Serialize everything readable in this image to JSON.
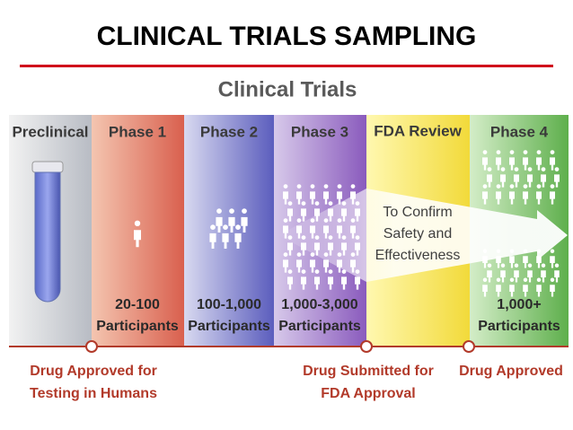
{
  "header": {
    "title": "CLINICAL TRIALS SAMPLING"
  },
  "diagram": {
    "title": "Clinical Trials",
    "columns": [
      {
        "label": "Preclinical"
      },
      {
        "label": "Phase 1",
        "count": "20-100",
        "unit": "Participants"
      },
      {
        "label": "Phase 2",
        "count": "100-1,000",
        "unit": "Participants"
      },
      {
        "label": "Phase 3",
        "count": "1,000-3,000",
        "unit": "Participants"
      },
      {
        "label": "FDA Review"
      },
      {
        "label": "Phase 4",
        "count": "1,000+",
        "unit": "Participants"
      }
    ],
    "arrow_text": [
      "To Confirm",
      "Safety and",
      "Effectiveness"
    ],
    "milestones": [
      {
        "lines": [
          "Drug Approved for",
          "Testing in Humans"
        ]
      },
      {
        "lines": [
          "Drug Submitted for",
          "FDA Approval"
        ]
      },
      {
        "lines": [
          "Drug Approved"
        ]
      }
    ]
  }
}
